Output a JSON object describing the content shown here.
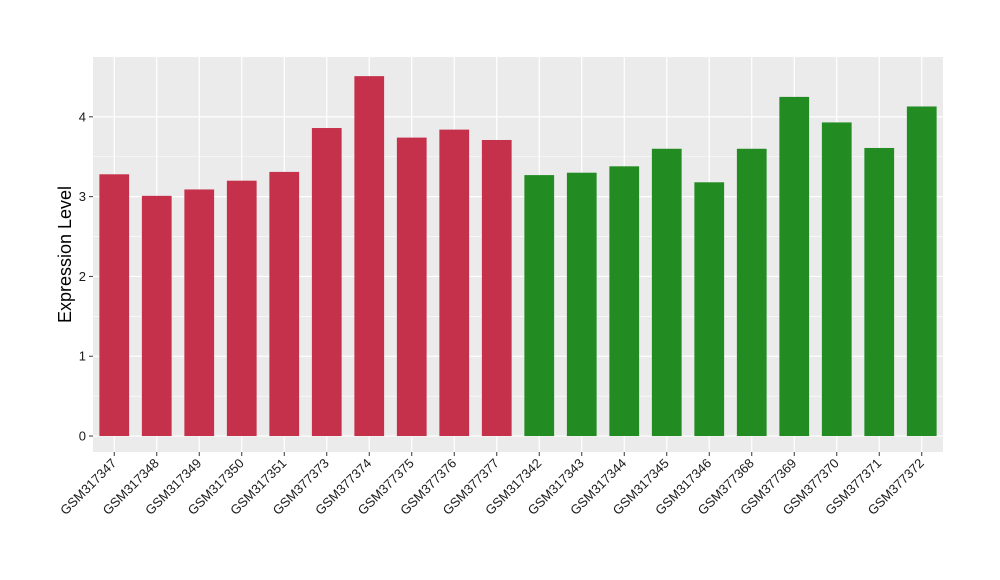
{
  "chart_data": {
    "type": "bar",
    "title": "",
    "xlabel": "",
    "ylabel": "Expression Level",
    "ylim": [
      -0.2,
      4.75
    ],
    "yticks": [
      0,
      1,
      2,
      3,
      4
    ],
    "grid": true,
    "legend": "none",
    "categories": [
      "GSM317347",
      "GSM317348",
      "GSM317349",
      "GSM317350",
      "GSM317351",
      "GSM377373",
      "GSM377374",
      "GSM377375",
      "GSM377376",
      "GSM377377",
      "GSM317342",
      "GSM317343",
      "GSM317344",
      "GSM317345",
      "GSM317346",
      "GSM377368",
      "GSM377369",
      "GSM377370",
      "GSM377371",
      "GSM377372"
    ],
    "values": [
      3.28,
      3.01,
      3.09,
      3.2,
      3.31,
      3.86,
      4.51,
      3.74,
      3.84,
      3.71,
      3.27,
      3.3,
      3.38,
      3.6,
      3.18,
      3.6,
      4.25,
      3.93,
      3.61,
      4.13
    ],
    "groups": [
      "red",
      "red",
      "red",
      "red",
      "red",
      "red",
      "red",
      "red",
      "red",
      "red",
      "green",
      "green",
      "green",
      "green",
      "green",
      "green",
      "green",
      "green",
      "green",
      "green"
    ],
    "colors": {
      "red": "#C5304A",
      "green": "#228B22",
      "panel": "#EBEBEB",
      "grid": "#FFFFFF",
      "tick": "#333333"
    }
  }
}
